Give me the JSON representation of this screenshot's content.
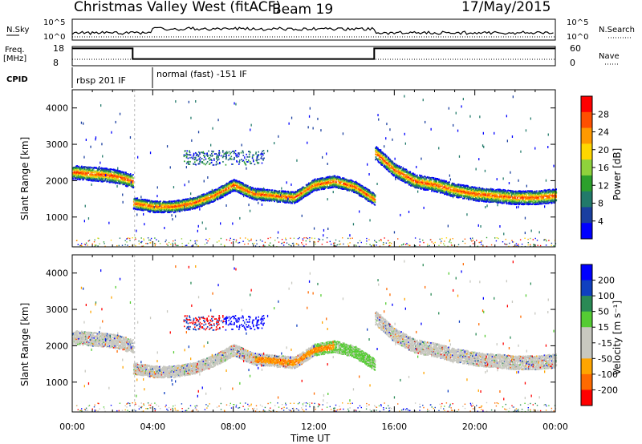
{
  "header": {
    "title": "Christmas Valley West (fitACF)",
    "beam": "Beam 19",
    "date": "17/May/2015"
  },
  "top_panels": {
    "nsky_label": "N.Sky",
    "nsky_ticks": [
      "10^5",
      "10^0"
    ],
    "nsearch_label": "N.Search",
    "nsearch_ticks": [
      "10^5",
      "10^0"
    ],
    "freq_label": "Freq.",
    "freq_unit": "[MHz]",
    "freq_ticks": [
      "18",
      "8"
    ],
    "nave_label": "Nave",
    "nave_ticks": [
      "60",
      "0"
    ],
    "cpid_label": "CPID",
    "cpid_segments": [
      "rbsp 201 IF",
      "normal (fast) -151 IF"
    ]
  },
  "x_axis": {
    "label": "Time UT",
    "ticks": [
      "00:00",
      "04:00",
      "08:00",
      "12:00",
      "16:00",
      "20:00",
      "00:00"
    ]
  },
  "panels": [
    {
      "name": "power",
      "y_label": "Slant Range [km]",
      "y_ticks": [
        "4000",
        "3000",
        "2000",
        "1000"
      ],
      "colorbar_label": "Power [dB]",
      "colorbar_ticks": [
        "28",
        "24",
        "20",
        "16",
        "12",
        "8",
        "4"
      ]
    },
    {
      "name": "velocity",
      "y_label": "Slant Range [km]",
      "y_ticks": [
        "4000",
        "3000",
        "2000",
        "1000"
      ],
      "colorbar_label": "Velocity [m s⁻¹]",
      "colorbar_ticks": [
        "200",
        "100",
        "50",
        "15",
        "-15",
        "-50",
        "-100",
        "-200"
      ]
    }
  ],
  "colors": {
    "power_scale": [
      "#0000ff",
      "#1a3fa0",
      "#227a6a",
      "#2ca02c",
      "#8fd23c",
      "#ffd700",
      "#ff9900",
      "#ff5000",
      "#ff0000"
    ],
    "velocity_scale": [
      "#ff0000",
      "#ff6a00",
      "#ffa500",
      "#c8c8c0",
      "#c8c8c0",
      "#55cc33",
      "#2a8a55",
      "#1040c0",
      "#0000ff"
    ]
  },
  "chart_data": {
    "type": "heatmap",
    "title": "Christmas Valley West (fitACF)",
    "xlabel": "Time UT",
    "ylabel": "Slant Range [km]",
    "xlim": [
      0,
      24
    ],
    "ylim": [
      180,
      4500
    ],
    "freq_series": {
      "x": [
        0,
        3,
        3,
        15,
        15,
        24
      ],
      "values": [
        17,
        17,
        11.5,
        11.5,
        17,
        17
      ]
    },
    "power_band": {
      "x": [
        0,
        1,
        2,
        3,
        3,
        4,
        5,
        6,
        7,
        8,
        9,
        10,
        11,
        12,
        13,
        14,
        15,
        15,
        16,
        17,
        18,
        19,
        20,
        21,
        22,
        23,
        24
      ],
      "range": [
        2250,
        2200,
        2150,
        2000,
        1400,
        1300,
        1300,
        1400,
        1600,
        1900,
        1650,
        1600,
        1550,
        1900,
        2000,
        1850,
        1500,
        2800,
        2300,
        2000,
        1900,
        1750,
        1650,
        1600,
        1550,
        1550,
        1600
      ]
    }
  }
}
